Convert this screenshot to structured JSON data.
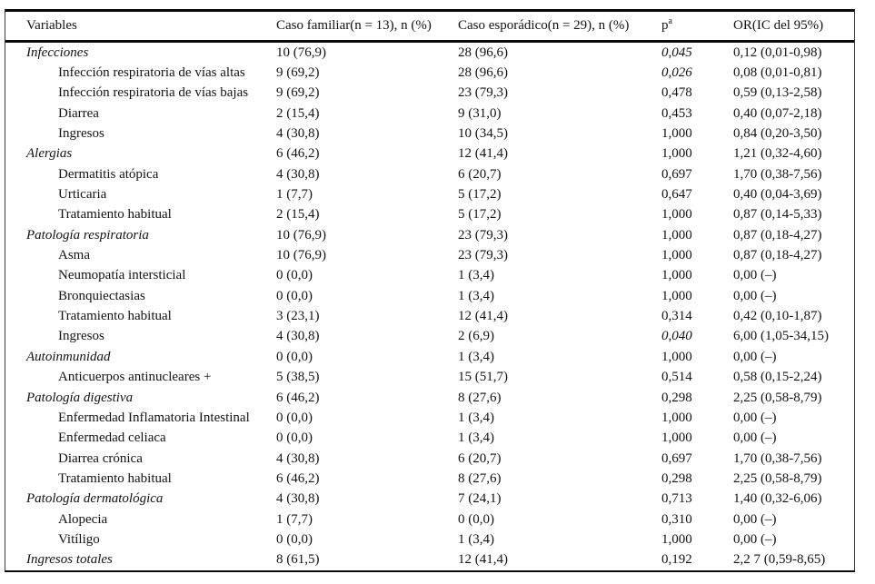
{
  "table": {
    "header": {
      "variables": "Variables",
      "familiar": "Caso familiar(n = 13), n (%)",
      "esporadico": "Caso esporádico(n = 29), n (%)",
      "p_label": "p",
      "p_sup": "a",
      "or": "OR(IC del 95%)"
    },
    "rows": [
      {
        "label": "Infecciones",
        "category": true,
        "indent": false,
        "familiar": "10 (76,9)",
        "esporadico": "28 (96,6)",
        "p": "0,045",
        "p_em": true,
        "or": "0,12 (0,01-0,98)"
      },
      {
        "label": "Infección respiratoria de vías altas",
        "category": false,
        "indent": true,
        "familiar": "9 (69,2)",
        "esporadico": "28 (96,6)",
        "p": "0,026",
        "p_em": true,
        "or": "0,08 (0,01-0,81)"
      },
      {
        "label": "Infección respiratoria de vías bajas",
        "category": false,
        "indent": true,
        "familiar": "9 (69,2)",
        "esporadico": "23 (79,3)",
        "p": "0,478",
        "p_em": false,
        "or": "0,59 (0,13-2,58)"
      },
      {
        "label": "Diarrea",
        "category": false,
        "indent": true,
        "familiar": "2 (15,4)",
        "esporadico": "9 (31,0)",
        "p": "0,453",
        "p_em": false,
        "or": "0,40 (0,07-2,18)"
      },
      {
        "label": "Ingresos",
        "category": false,
        "indent": true,
        "familiar": "4 (30,8)",
        "esporadico": "10 (34,5)",
        "p": "1,000",
        "p_em": false,
        "or": "0,84 (0,20-3,50)"
      },
      {
        "label": "Alergias",
        "category": true,
        "indent": false,
        "familiar": "6 (46,2)",
        "esporadico": "12 (41,4)",
        "p": "1,000",
        "p_em": false,
        "or": "1,21 (0,32-4,60)"
      },
      {
        "label": "Dermatitis atópica",
        "category": false,
        "indent": true,
        "familiar": "4 (30,8)",
        "esporadico": "6 (20,7)",
        "p": "0,697",
        "p_em": false,
        "or": "1,70 (0,38-7,56)"
      },
      {
        "label": "Urticaria",
        "category": false,
        "indent": true,
        "familiar": "1 (7,7)",
        "esporadico": "5 (17,2)",
        "p": "0,647",
        "p_em": false,
        "or": "0,40 (0,04-3,69)"
      },
      {
        "label": "Tratamiento habitual",
        "category": false,
        "indent": true,
        "familiar": "2 (15,4)",
        "esporadico": "5 (17,2)",
        "p": "1,000",
        "p_em": false,
        "or": "0,87 (0,14-5,33)"
      },
      {
        "label": "Patología respiratoria",
        "category": true,
        "indent": false,
        "familiar": "10 (76,9)",
        "esporadico": "23 (79,3)",
        "p": "1,000",
        "p_em": false,
        "or": "0,87 (0,18-4,27)"
      },
      {
        "label": "Asma",
        "category": false,
        "indent": true,
        "familiar": "10 (76,9)",
        "esporadico": "23 (79,3)",
        "p": "1,000",
        "p_em": false,
        "or": "0,87 (0,18-4,27)"
      },
      {
        "label": "Neumopatía intersticial",
        "category": false,
        "indent": true,
        "familiar": "0 (0,0)",
        "esporadico": "1 (3,4)",
        "p": "1,000",
        "p_em": false,
        "or": "0,00 (–)"
      },
      {
        "label": "Bronquiectasias",
        "category": false,
        "indent": true,
        "familiar": "0 (0,0)",
        "esporadico": "1 (3,4)",
        "p": "1,000",
        "p_em": false,
        "or": "0,00 (–)"
      },
      {
        "label": "Tratamiento habitual",
        "category": false,
        "indent": true,
        "familiar": "3 (23,1)",
        "esporadico": "12 (41,4)",
        "p": "0,314",
        "p_em": false,
        "or": "0,42 (0,10-1,87)"
      },
      {
        "label": "Ingresos",
        "category": false,
        "indent": true,
        "familiar": "4 (30,8)",
        "esporadico": "2 (6,9)",
        "p": "0,040",
        "p_em": true,
        "or": "6,00 (1,05-34,15)"
      },
      {
        "label": "Autoinmunidad",
        "category": true,
        "indent": false,
        "familiar": "0 (0,0)",
        "esporadico": "1 (3,4)",
        "p": "1,000",
        "p_em": false,
        "or": "0,00 (–)"
      },
      {
        "label": "Anticuerpos antinucleares +",
        "category": false,
        "indent": true,
        "familiar": "5 (38,5)",
        "esporadico": "15 (51,7)",
        "p": "0,514",
        "p_em": false,
        "or": "0,58 (0,15-2,24)"
      },
      {
        "label": "Patología digestiva",
        "category": true,
        "indent": false,
        "familiar": "6 (46,2)",
        "esporadico": "8 (27,6)",
        "p": "0,298",
        "p_em": false,
        "or": "2,25 (0,58-8,79)"
      },
      {
        "label": "Enfermedad Inflamatoria Intestinal",
        "category": false,
        "indent": true,
        "familiar": "0 (0,0)",
        "esporadico": "1 (3,4)",
        "p": "1,000",
        "p_em": false,
        "or": "0,00 (–)"
      },
      {
        "label": "Enfermedad celiaca",
        "category": false,
        "indent": true,
        "familiar": "0 (0,0)",
        "esporadico": "1 (3,4)",
        "p": "1,000",
        "p_em": false,
        "or": "0,00 (–)"
      },
      {
        "label": "Diarrea crónica",
        "category": false,
        "indent": true,
        "familiar": "4 (30,8)",
        "esporadico": "6 (20,7)",
        "p": "0,697",
        "p_em": false,
        "or": "1,70 (0,38-7,56)"
      },
      {
        "label": "Tratamiento habitual",
        "category": false,
        "indent": true,
        "familiar": "6 (46,2)",
        "esporadico": "8 (27,6)",
        "p": "0,298",
        "p_em": false,
        "or": "2,25 (0,58-8,79)"
      },
      {
        "label": "Patología dermatológica",
        "category": true,
        "indent": false,
        "familiar": "4 (30,8)",
        "esporadico": "7 (24,1)",
        "p": "0,713",
        "p_em": false,
        "or": "1,40 (0,32-6,06)"
      },
      {
        "label": "Alopecia",
        "category": false,
        "indent": true,
        "familiar": "1 (7,7)",
        "esporadico": "0 (0,0)",
        "p": "0,310",
        "p_em": false,
        "or": "0,00 (–)"
      },
      {
        "label": "Vitíligo",
        "category": false,
        "indent": true,
        "familiar": "0 (0,0)",
        "esporadico": "1 (3,4)",
        "p": "1,000",
        "p_em": false,
        "or": "0,00 (–)"
      },
      {
        "label": "Ingresos totales",
        "category": true,
        "indent": false,
        "familiar": "8 (61,5)",
        "esporadico": "12 (41,4)",
        "p": "0,192",
        "p_em": false,
        "or": "2,2 7 (0,59-8,65)"
      }
    ]
  }
}
